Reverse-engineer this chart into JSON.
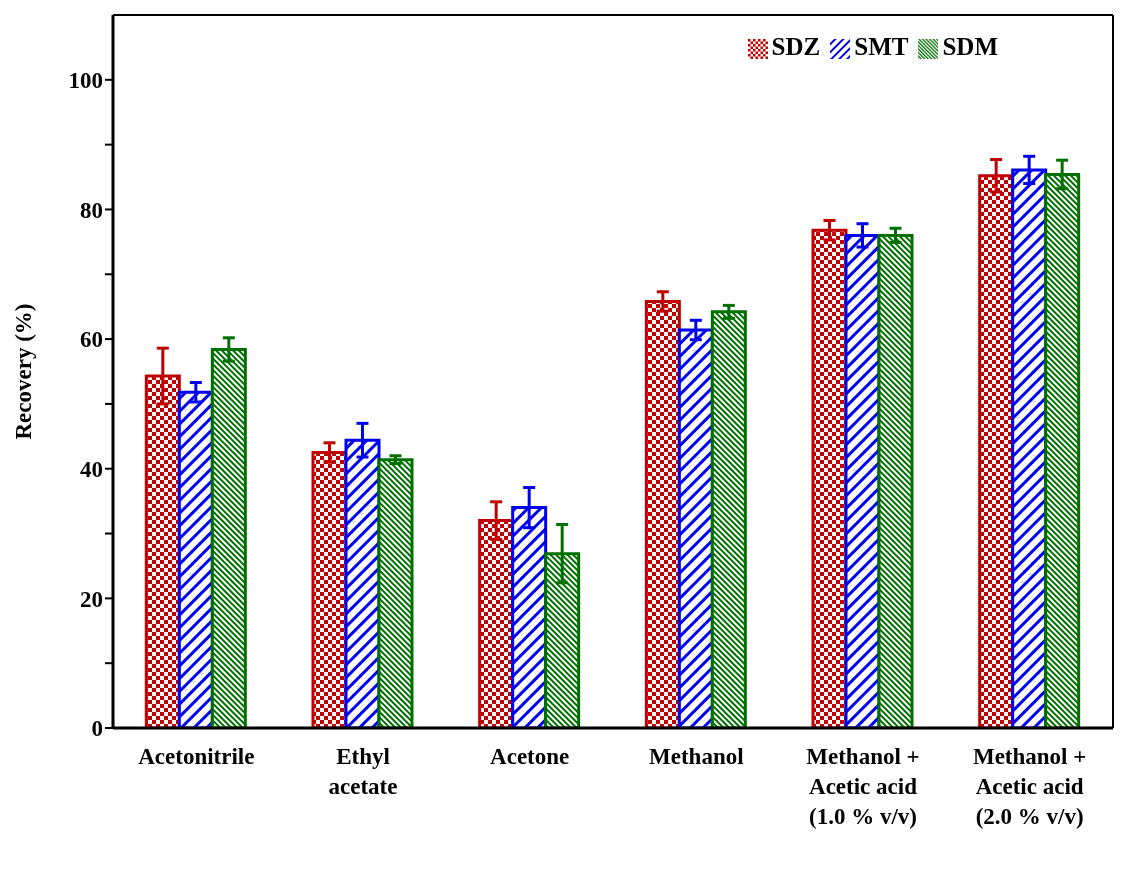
{
  "chart_data": {
    "type": "bar",
    "ylabel": "Recovery (%)",
    "categories": [
      "Acetonitrile",
      "Ethyl acetate",
      "Acetone",
      "Methanol",
      "Methanol + Acetic acid (1.0 % v/v)",
      "Methanol + Acetic acid (2.0 % v/v)"
    ],
    "series": [
      {
        "name": "SDZ",
        "color": "#c00000",
        "values": [
          54.3,
          42.5,
          32.0,
          65.8,
          76.8,
          85.2
        ],
        "errors": [
          4.3,
          1.5,
          2.9,
          1.5,
          1.5,
          2.5
        ]
      },
      {
        "name": "SMT",
        "color": "#0000ee",
        "values": [
          51.8,
          44.4,
          34.0,
          61.4,
          76.0,
          86.1
        ],
        "errors": [
          1.5,
          2.6,
          3.1,
          1.5,
          1.8,
          2.1
        ]
      },
      {
        "name": "SDM",
        "color": "#007000",
        "values": [
          58.4,
          41.4,
          26.9,
          64.2,
          76.0,
          85.4
        ],
        "errors": [
          1.8,
          0.6,
          4.5,
          1.0,
          1.1,
          2.2
        ]
      }
    ],
    "ylim": [
      0,
      110
    ],
    "yticks": [
      0,
      {
        "value": 10,
        "label": null
      },
      20,
      {
        "value": 30,
        "label": null
      },
      40,
      {
        "value": 50,
        "label": null
      },
      60,
      {
        "value": 70,
        "label": null
      },
      80,
      {
        "value": 90,
        "label": null
      },
      100
    ],
    "grid": false,
    "legend": "top right"
  }
}
